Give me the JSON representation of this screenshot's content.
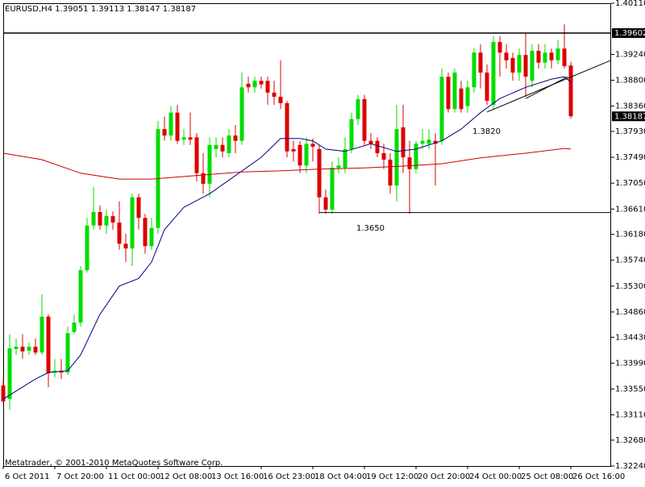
{
  "chart_data": {
    "type": "candlestick",
    "title": "EURUSD,H4  1.39051 1.39113 1.38147 1.38187",
    "watermark": "Metatrader, © 2001-2010 MetaQuotes Software Corp.",
    "annotations": [
      "1.3820",
      "1.3650"
    ],
    "categories": [
      "6 Oct 2011",
      null,
      null,
      null,
      null,
      null,
      null,
      null,
      "7 Oct 20:00",
      null,
      null,
      null,
      null,
      null,
      null,
      null,
      "11 Oct 00:00",
      null,
      null,
      null,
      null,
      null,
      null,
      null,
      "12 Oct 08:00",
      null,
      null,
      null,
      null,
      null,
      null,
      null,
      "13 Oct 16:00",
      null,
      null,
      null,
      null,
      null,
      null,
      null,
      "16 Oct 23:00",
      null,
      null,
      null,
      null,
      null,
      null,
      null,
      "18 Oct 04:00",
      null,
      null,
      null,
      null,
      null,
      null,
      null,
      "19 Oct 12:00",
      null,
      null,
      null,
      null,
      null,
      null,
      null,
      "20 Oct 20:00",
      null,
      null,
      null,
      null,
      null,
      null,
      null,
      "24 Oct 00:00",
      null,
      null,
      null,
      null,
      null,
      null,
      null,
      "25 Oct 08:00",
      null,
      null,
      null,
      null,
      null,
      null,
      null,
      "26 Oct 16:00"
    ],
    "open": [
      1.3361,
      1.3338,
      1.3423,
      1.3427,
      1.342,
      1.3427,
      1.3417,
      1.3478,
      1.3383,
      1.3386,
      1.3383,
      1.3452,
      1.3468,
      1.3557,
      1.3633,
      1.3656,
      1.3633,
      1.3649,
      1.3638,
      1.3602,
      1.3594,
      1.3681,
      1.3646,
      1.3598,
      1.3629,
      1.3797,
      1.3786,
      1.3825,
      1.3779,
      1.3783,
      1.3783,
      1.3722,
      1.3704,
      1.3763,
      1.377,
      1.3756,
      1.3786,
      1.3777,
      1.3874,
      1.3868,
      1.3879,
      1.3879,
      1.3859,
      1.3852,
      1.3841,
      1.3763,
      1.377,
      1.3735,
      1.3772,
      1.3763,
      1.3681,
      1.366,
      1.3731,
      1.3731,
      1.3763,
      1.3814,
      1.3848,
      1.3777,
      1.3777,
      1.3756,
      1.3745,
      1.3701,
      1.38,
      1.3749,
      1.3729,
      1.3772,
      1.3772,
      1.3777,
      1.3777,
      1.3886,
      1.3831,
      1.3866,
      1.3836,
      1.3868,
      1.3927,
      1.3893,
      1.3838,
      1.3945,
      1.3927,
      1.3918,
      1.3893,
      1.3923,
      1.3879,
      1.393,
      1.391,
      1.3927,
      1.3914,
      1.3934,
      1.39051
    ],
    "high": [
      1.3372,
      1.3448,
      1.3441,
      1.3448,
      1.3434,
      1.3441,
      1.3516,
      1.3482,
      1.3406,
      1.3406,
      1.3461,
      1.3482,
      1.3564,
      1.3646,
      1.3698,
      1.3667,
      1.366,
      1.3657,
      1.3674,
      1.3619,
      1.3687,
      1.3687,
      1.3653,
      1.3646,
      1.3811,
      1.3818,
      1.3836,
      1.3838,
      1.3797,
      1.3825,
      1.379,
      1.3756,
      1.3783,
      1.3783,
      1.3783,
      1.3797,
      1.3804,
      1.3893,
      1.3886,
      1.3886,
      1.3886,
      1.3886,
      1.3879,
      1.3914,
      1.3845,
      1.3777,
      1.3777,
      1.3783,
      1.3781,
      1.377,
      1.3694,
      1.3742,
      1.3749,
      1.3783,
      1.3825,
      1.3855,
      1.3855,
      1.379,
      1.3783,
      1.3772,
      1.3756,
      1.3838,
      1.3838,
      1.3777,
      1.3777,
      1.3797,
      1.3797,
      1.379,
      1.39,
      1.3893,
      1.39,
      1.3879,
      1.3879,
      1.3934,
      1.3941,
      1.3907,
      1.3955,
      1.3955,
      1.3941,
      1.3927,
      1.3934,
      1.3959,
      1.3941,
      1.3941,
      1.3941,
      1.3934,
      1.3948,
      1.3975,
      1.39113
    ],
    "low": [
      1.3331,
      1.332,
      1.3413,
      1.3406,
      1.3413,
      1.3413,
      1.3413,
      1.3358,
      1.3375,
      1.3372,
      1.3379,
      1.3448,
      1.3461,
      1.3553,
      1.3626,
      1.3626,
      1.3619,
      1.3626,
      1.3592,
      1.3571,
      1.3564,
      1.3626,
      1.3585,
      1.3592,
      1.3619,
      1.3777,
      1.3777,
      1.3772,
      1.377,
      1.377,
      1.3708,
      1.3687,
      1.3681,
      1.3749,
      1.3749,
      1.3749,
      1.3756,
      1.377,
      1.3859,
      1.3859,
      1.3866,
      1.3838,
      1.3838,
      1.3831,
      1.3749,
      1.3742,
      1.3722,
      1.3722,
      1.3742,
      1.3653,
      1.3653,
      1.3653,
      1.3722,
      1.3722,
      1.3756,
      1.3804,
      1.377,
      1.3763,
      1.3749,
      1.3729,
      1.3687,
      1.3674,
      1.3722,
      1.3653,
      1.3722,
      1.3763,
      1.3763,
      1.3701,
      1.377,
      1.3825,
      1.3825,
      1.3825,
      1.3825,
      1.3859,
      1.3866,
      1.3838,
      1.3831,
      1.3886,
      1.39,
      1.3879,
      1.3879,
      1.3852,
      1.3868,
      1.39,
      1.39,
      1.39,
      1.3907,
      1.39,
      1.38147
    ],
    "close": [
      1.3334,
      1.3424,
      1.3427,
      1.3419,
      1.3427,
      1.3417,
      1.3478,
      1.3382,
      1.3386,
      1.3383,
      1.345,
      1.3468,
      1.3557,
      1.3633,
      1.3656,
      1.3633,
      1.3649,
      1.3638,
      1.3602,
      1.3594,
      1.3681,
      1.3646,
      1.3598,
      1.3629,
      1.3797,
      1.3786,
      1.3825,
      1.3777,
      1.3783,
      1.3779,
      1.3722,
      1.3704,
      1.377,
      1.377,
      1.3759,
      1.3786,
      1.3777,
      1.3868,
      1.3868,
      1.3879,
      1.3873,
      1.3859,
      1.3852,
      1.3841,
      1.3759,
      1.3759,
      1.3735,
      1.3772,
      1.3767,
      1.3681,
      1.366,
      1.3731,
      1.3735,
      1.3763,
      1.3814,
      1.3848,
      1.3777,
      1.3772,
      1.3756,
      1.3745,
      1.3701,
      1.3797,
      1.3749,
      1.3729,
      1.3772,
      1.3777,
      1.3779,
      1.3772,
      1.3886,
      1.3831,
      1.3893,
      1.3831,
      1.3868,
      1.3927,
      1.3893,
      1.3845,
      1.3945,
      1.3927,
      1.3914,
      1.3893,
      1.3923,
      1.3886,
      1.393,
      1.391,
      1.3927,
      1.3914,
      1.3934,
      1.3904,
      1.38187
    ],
    "up_color": "#00dd00",
    "down_color": "#dd0000",
    "moving_averages": [
      {
        "color": "#000080",
        "x": [
          0,
          5,
          7,
          10,
          12,
          15,
          18,
          21,
          23,
          25,
          28,
          32,
          36,
          40,
          43,
          46,
          48,
          50,
          53,
          57,
          61,
          64,
          68,
          71,
          74,
          77,
          81,
          85,
          87,
          88
        ],
        "values": [
          1.3338,
          1.3372,
          1.3383,
          1.3386,
          1.3413,
          1.3482,
          1.353,
          1.3543,
          1.3571,
          1.3626,
          1.3664,
          1.3687,
          1.3718,
          1.3749,
          1.3781,
          1.3781,
          1.3777,
          1.3763,
          1.3759,
          1.3772,
          1.3759,
          1.3763,
          1.3777,
          1.3797,
          1.3825,
          1.3849,
          1.3868,
          1.3882,
          1.3886,
          1.3877
        ]
      },
      {
        "color": "#cc0000",
        "x": [
          0,
          6,
          12,
          18,
          23,
          31,
          37,
          43,
          49,
          56,
          62,
          68,
          74,
          81,
          87,
          88
        ],
        "values": [
          1.3756,
          1.3745,
          1.3722,
          1.3712,
          1.3712,
          1.3719,
          1.3724,
          1.3726,
          1.3729,
          1.3731,
          1.3734,
          1.3738,
          1.3748,
          1.3756,
          1.3764,
          1.3763
        ]
      }
    ],
    "trend_lines": [
      {
        "x": [
          75,
          94.25
        ],
        "values": [
          1.3826,
          1.3914
        ]
      },
      {
        "x": [
          81,
          87.5
        ],
        "values": [
          1.3849,
          1.3886
        ]
      },
      {
        "x": [
          49,
          94.25
        ],
        "values": [
          1.3655,
          1.3655
        ]
      }
    ],
    "level": 1.39602,
    "current_price": 1.38187,
    "xlim": [
      0,
      94.25
    ],
    "ylim": [
      1.3224,
      1.4011
    ],
    "yticks": [
      {
        "value": 1.4011,
        "label": "1.40110"
      },
      {
        "value": 1.3924,
        "label": "1.39240"
      },
      {
        "value": 1.388,
        "label": "1.38800"
      },
      {
        "value": 1.3836,
        "label": "1.38360"
      },
      {
        "value": 1.3793,
        "label": "1.37930"
      },
      {
        "value": 1.3749,
        "label": "1.37490"
      },
      {
        "value": 1.3705,
        "label": "1.37050"
      },
      {
        "value": 1.3661,
        "label": "1.36610"
      },
      {
        "value": 1.3618,
        "label": "1.36180"
      },
      {
        "value": 1.3574,
        "label": "1.35740"
      },
      {
        "value": 1.353,
        "label": "1.35300"
      },
      {
        "value": 1.3486,
        "label": "1.34860"
      },
      {
        "value": 1.3443,
        "label": "1.34430"
      },
      {
        "value": 1.3399,
        "label": "1.33990"
      },
      {
        "value": 1.3355,
        "label": "1.33550"
      },
      {
        "value": 1.3311,
        "label": "1.33110"
      },
      {
        "value": 1.3268,
        "label": "1.32680"
      },
      {
        "value": 1.3224,
        "label": "1.32240"
      }
    ]
  }
}
